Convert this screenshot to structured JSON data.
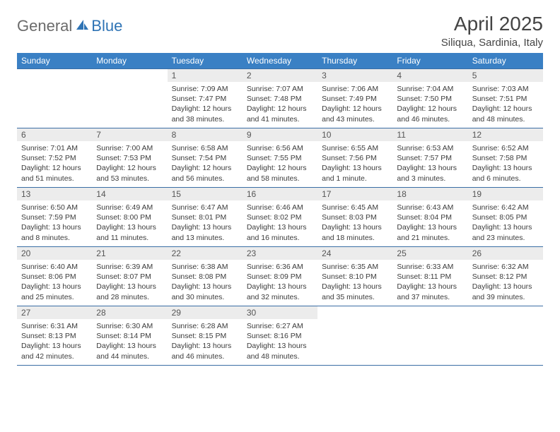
{
  "logo": {
    "general": "General",
    "blue": "Blue"
  },
  "header": {
    "month_title": "April 2025",
    "location": "Siliqua, Sardinia, Italy"
  },
  "styling": {
    "header_bg": "#3a80c4",
    "header_text": "#ffffff",
    "cell_border": "#3a6ea5",
    "daynum_bg": "#ececec",
    "body_text": "#3b3b3b",
    "page_bg": "#ffffff",
    "title_color": "#444444",
    "logo_gray": "#6b6b6b",
    "logo_blue": "#2f74b5",
    "month_title_fontsize": 28,
    "location_fontsize": 15,
    "dayheader_fontsize": 12,
    "daynum_fontsize": 12,
    "cellbody_fontsize": 10.5
  },
  "day_headers": [
    "Sunday",
    "Monday",
    "Tuesday",
    "Wednesday",
    "Thursday",
    "Friday",
    "Saturday"
  ],
  "weeks": [
    [
      {
        "n": "",
        "sr": "",
        "ss": "",
        "dl": ""
      },
      {
        "n": "",
        "sr": "",
        "ss": "",
        "dl": ""
      },
      {
        "n": "1",
        "sr": "Sunrise: 7:09 AM",
        "ss": "Sunset: 7:47 PM",
        "dl": "Daylight: 12 hours and 38 minutes."
      },
      {
        "n": "2",
        "sr": "Sunrise: 7:07 AM",
        "ss": "Sunset: 7:48 PM",
        "dl": "Daylight: 12 hours and 41 minutes."
      },
      {
        "n": "3",
        "sr": "Sunrise: 7:06 AM",
        "ss": "Sunset: 7:49 PM",
        "dl": "Daylight: 12 hours and 43 minutes."
      },
      {
        "n": "4",
        "sr": "Sunrise: 7:04 AM",
        "ss": "Sunset: 7:50 PM",
        "dl": "Daylight: 12 hours and 46 minutes."
      },
      {
        "n": "5",
        "sr": "Sunrise: 7:03 AM",
        "ss": "Sunset: 7:51 PM",
        "dl": "Daylight: 12 hours and 48 minutes."
      }
    ],
    [
      {
        "n": "6",
        "sr": "Sunrise: 7:01 AM",
        "ss": "Sunset: 7:52 PM",
        "dl": "Daylight: 12 hours and 51 minutes."
      },
      {
        "n": "7",
        "sr": "Sunrise: 7:00 AM",
        "ss": "Sunset: 7:53 PM",
        "dl": "Daylight: 12 hours and 53 minutes."
      },
      {
        "n": "8",
        "sr": "Sunrise: 6:58 AM",
        "ss": "Sunset: 7:54 PM",
        "dl": "Daylight: 12 hours and 56 minutes."
      },
      {
        "n": "9",
        "sr": "Sunrise: 6:56 AM",
        "ss": "Sunset: 7:55 PM",
        "dl": "Daylight: 12 hours and 58 minutes."
      },
      {
        "n": "10",
        "sr": "Sunrise: 6:55 AM",
        "ss": "Sunset: 7:56 PM",
        "dl": "Daylight: 13 hours and 1 minute."
      },
      {
        "n": "11",
        "sr": "Sunrise: 6:53 AM",
        "ss": "Sunset: 7:57 PM",
        "dl": "Daylight: 13 hours and 3 minutes."
      },
      {
        "n": "12",
        "sr": "Sunrise: 6:52 AM",
        "ss": "Sunset: 7:58 PM",
        "dl": "Daylight: 13 hours and 6 minutes."
      }
    ],
    [
      {
        "n": "13",
        "sr": "Sunrise: 6:50 AM",
        "ss": "Sunset: 7:59 PM",
        "dl": "Daylight: 13 hours and 8 minutes."
      },
      {
        "n": "14",
        "sr": "Sunrise: 6:49 AM",
        "ss": "Sunset: 8:00 PM",
        "dl": "Daylight: 13 hours and 11 minutes."
      },
      {
        "n": "15",
        "sr": "Sunrise: 6:47 AM",
        "ss": "Sunset: 8:01 PM",
        "dl": "Daylight: 13 hours and 13 minutes."
      },
      {
        "n": "16",
        "sr": "Sunrise: 6:46 AM",
        "ss": "Sunset: 8:02 PM",
        "dl": "Daylight: 13 hours and 16 minutes."
      },
      {
        "n": "17",
        "sr": "Sunrise: 6:45 AM",
        "ss": "Sunset: 8:03 PM",
        "dl": "Daylight: 13 hours and 18 minutes."
      },
      {
        "n": "18",
        "sr": "Sunrise: 6:43 AM",
        "ss": "Sunset: 8:04 PM",
        "dl": "Daylight: 13 hours and 21 minutes."
      },
      {
        "n": "19",
        "sr": "Sunrise: 6:42 AM",
        "ss": "Sunset: 8:05 PM",
        "dl": "Daylight: 13 hours and 23 minutes."
      }
    ],
    [
      {
        "n": "20",
        "sr": "Sunrise: 6:40 AM",
        "ss": "Sunset: 8:06 PM",
        "dl": "Daylight: 13 hours and 25 minutes."
      },
      {
        "n": "21",
        "sr": "Sunrise: 6:39 AM",
        "ss": "Sunset: 8:07 PM",
        "dl": "Daylight: 13 hours and 28 minutes."
      },
      {
        "n": "22",
        "sr": "Sunrise: 6:38 AM",
        "ss": "Sunset: 8:08 PM",
        "dl": "Daylight: 13 hours and 30 minutes."
      },
      {
        "n": "23",
        "sr": "Sunrise: 6:36 AM",
        "ss": "Sunset: 8:09 PM",
        "dl": "Daylight: 13 hours and 32 minutes."
      },
      {
        "n": "24",
        "sr": "Sunrise: 6:35 AM",
        "ss": "Sunset: 8:10 PM",
        "dl": "Daylight: 13 hours and 35 minutes."
      },
      {
        "n": "25",
        "sr": "Sunrise: 6:33 AM",
        "ss": "Sunset: 8:11 PM",
        "dl": "Daylight: 13 hours and 37 minutes."
      },
      {
        "n": "26",
        "sr": "Sunrise: 6:32 AM",
        "ss": "Sunset: 8:12 PM",
        "dl": "Daylight: 13 hours and 39 minutes."
      }
    ],
    [
      {
        "n": "27",
        "sr": "Sunrise: 6:31 AM",
        "ss": "Sunset: 8:13 PM",
        "dl": "Daylight: 13 hours and 42 minutes."
      },
      {
        "n": "28",
        "sr": "Sunrise: 6:30 AM",
        "ss": "Sunset: 8:14 PM",
        "dl": "Daylight: 13 hours and 44 minutes."
      },
      {
        "n": "29",
        "sr": "Sunrise: 6:28 AM",
        "ss": "Sunset: 8:15 PM",
        "dl": "Daylight: 13 hours and 46 minutes."
      },
      {
        "n": "30",
        "sr": "Sunrise: 6:27 AM",
        "ss": "Sunset: 8:16 PM",
        "dl": "Daylight: 13 hours and 48 minutes."
      },
      {
        "n": "",
        "sr": "",
        "ss": "",
        "dl": ""
      },
      {
        "n": "",
        "sr": "",
        "ss": "",
        "dl": ""
      },
      {
        "n": "",
        "sr": "",
        "ss": "",
        "dl": ""
      }
    ]
  ]
}
